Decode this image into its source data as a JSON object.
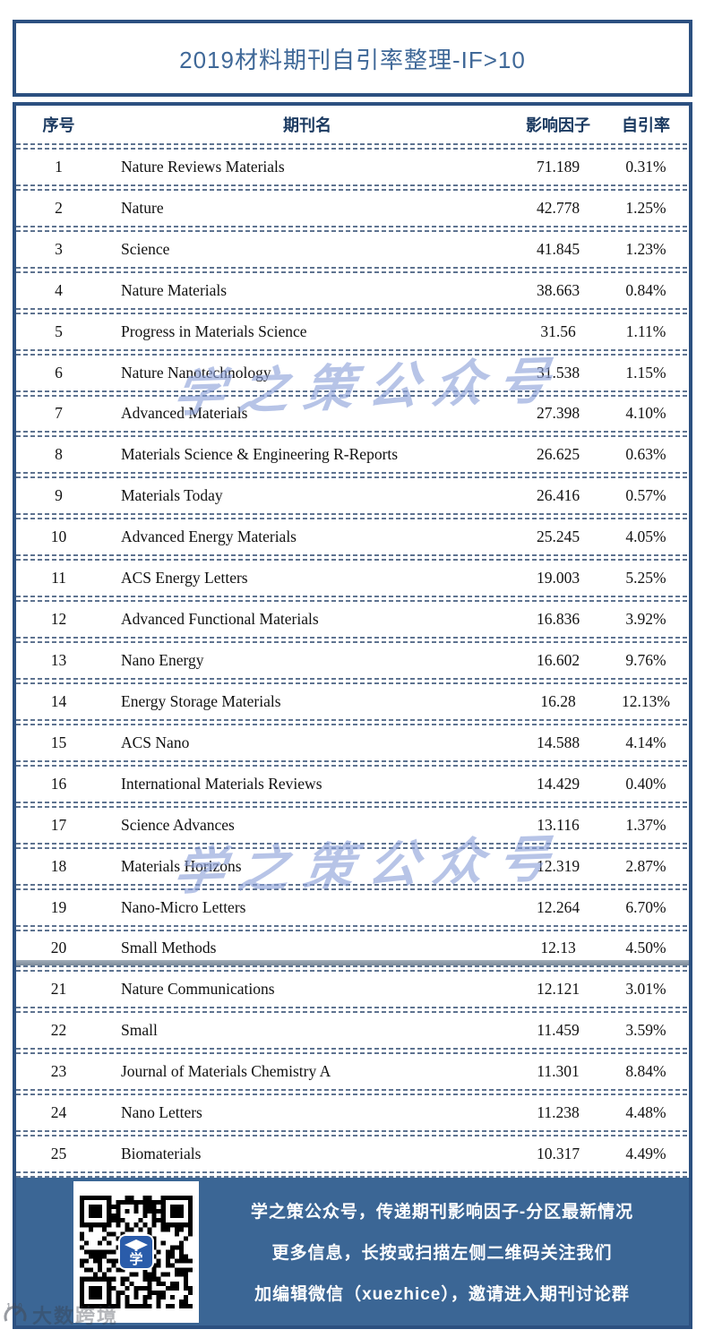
{
  "title": "2019材料期刊自引率整理-IF>10",
  "table": {
    "headers": {
      "index": "序号",
      "journal": "期刊名",
      "impact_factor": "影响因子",
      "self_citation": "自引率"
    },
    "rows": [
      {
        "index": "1",
        "journal": "Nature Reviews Materials",
        "impact_factor": "71.189",
        "self_citation": "0.31%"
      },
      {
        "index": "2",
        "journal": "Nature",
        "impact_factor": "42.778",
        "self_citation": "1.25%"
      },
      {
        "index": "3",
        "journal": "Science",
        "impact_factor": "41.845",
        "self_citation": "1.23%"
      },
      {
        "index": "4",
        "journal": "Nature Materials",
        "impact_factor": "38.663",
        "self_citation": "0.84%"
      },
      {
        "index": "5",
        "journal": "Progress in Materials Science",
        "impact_factor": "31.56",
        "self_citation": "1.11%"
      },
      {
        "index": "6",
        "journal": "Nature Nanotechnology",
        "impact_factor": "31.538",
        "self_citation": "1.15%"
      },
      {
        "index": "7",
        "journal": "Advanced Materials",
        "impact_factor": "27.398",
        "self_citation": "4.10%"
      },
      {
        "index": "8",
        "journal": "Materials Science & Engineering R-Reports",
        "impact_factor": "26.625",
        "self_citation": "0.63%"
      },
      {
        "index": "9",
        "journal": "Materials Today",
        "impact_factor": "26.416",
        "self_citation": "0.57%"
      },
      {
        "index": "10",
        "journal": "Advanced Energy Materials",
        "impact_factor": "25.245",
        "self_citation": "4.05%"
      },
      {
        "index": "11",
        "journal": "ACS Energy Letters",
        "impact_factor": "19.003",
        "self_citation": "5.25%"
      },
      {
        "index": "12",
        "journal": "Advanced Functional Materials",
        "impact_factor": "16.836",
        "self_citation": "3.92%"
      },
      {
        "index": "13",
        "journal": "Nano Energy",
        "impact_factor": "16.602",
        "self_citation": "9.76%"
      },
      {
        "index": "14",
        "journal": "Energy Storage Materials",
        "impact_factor": "16.28",
        "self_citation": "12.13%"
      },
      {
        "index": "15",
        "journal": "ACS Nano",
        "impact_factor": "14.588",
        "self_citation": "4.14%"
      },
      {
        "index": "16",
        "journal": "International Materials Reviews",
        "impact_factor": "14.429",
        "self_citation": "0.40%"
      },
      {
        "index": "17",
        "journal": "Science Advances",
        "impact_factor": "13.116",
        "self_citation": "1.37%"
      },
      {
        "index": "18",
        "journal": "Materials Horizons",
        "impact_factor": "12.319",
        "self_citation": "2.87%"
      },
      {
        "index": "19",
        "journal": "Nano-Micro Letters",
        "impact_factor": "12.264",
        "self_citation": "6.70%"
      },
      {
        "index": "20",
        "journal": "Small Methods",
        "impact_factor": "12.13",
        "self_citation": "4.50%"
      },
      {
        "index": "21",
        "journal": "Nature Communications",
        "impact_factor": "12.121",
        "self_citation": "3.01%"
      },
      {
        "index": "22",
        "journal": "Small",
        "impact_factor": "11.459",
        "self_citation": "3.59%"
      },
      {
        "index": "23",
        "journal": "Journal of Materials Chemistry A",
        "impact_factor": "11.301",
        "self_citation": "8.84%"
      },
      {
        "index": "24",
        "journal": "Nano Letters",
        "impact_factor": "11.238",
        "self_citation": "4.48%"
      },
      {
        "index": "25",
        "journal": "Biomaterials",
        "impact_factor": "10.317",
        "self_citation": "4.49%"
      }
    ]
  },
  "watermark": {
    "text": "学之策公众号",
    "color": "#8aa0d8"
  },
  "footer": {
    "background": "#3b6695",
    "qr_icon": "qr-code",
    "qr_logo_char": "学",
    "lines": [
      "学之策公众号，传递期刊影响因子-分区最新情况",
      "更多信息，长按或扫描左侧二维码关注我们",
      "加编辑微信（xuezhice），邀请进入期刊讨论群"
    ]
  },
  "corner_watermark": {
    "icon": "gauge-100-icon",
    "text": "大数跨境"
  },
  "colors": {
    "border": "#2c5080",
    "title_text": "#3f6898",
    "header_text": "#1b3a61",
    "footer_bg": "#3b6695",
    "qr_logo_bg": "#2a5caa"
  }
}
